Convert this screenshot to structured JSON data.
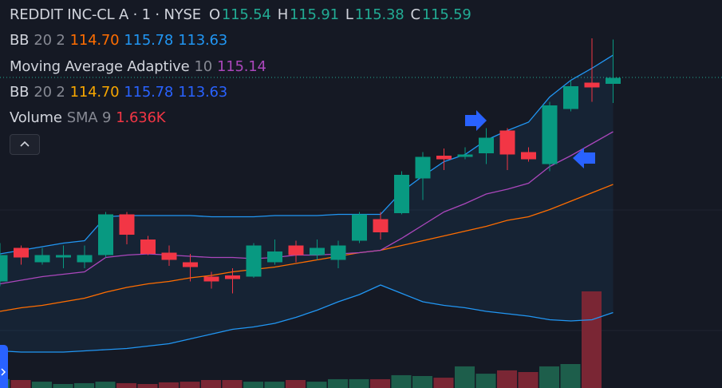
{
  "legend": {
    "symbol": "REDDIT INC-CL A · 1 · NYSE",
    "ohlc": [
      {
        "label": "O",
        "value": "115.54"
      },
      {
        "label": "H",
        "value": "115.91"
      },
      {
        "label": "L",
        "value": "115.38"
      },
      {
        "label": "C",
        "value": "115.59"
      }
    ],
    "bb1": {
      "name": "BB",
      "params": "20 2",
      "basis": "114.70",
      "upper": "115.78",
      "lower": "113.63"
    },
    "ama": {
      "name": "Moving Average Adaptive",
      "params": "10",
      "value": "115.14"
    },
    "bb2": {
      "name": "BB",
      "params": "20 2",
      "basis": "114.70",
      "upper": "115.78",
      "lower": "113.63"
    },
    "volume": {
      "name": "Volume",
      "params": "SMA 9",
      "value": "1.636K"
    }
  },
  "chart_data": {
    "type": "candlestick",
    "up_color": "#089981",
    "down_color": "#f23645",
    "ylim": [
      113.0,
      116.24
    ],
    "open": [
      113.89,
      114.17,
      114.05,
      114.09,
      114.05,
      114.11,
      114.45,
      114.24,
      114.13,
      114.05,
      113.93,
      113.94,
      113.93,
      114.05,
      114.19,
      114.11,
      114.07,
      114.23,
      114.41,
      114.46,
      114.75,
      114.94,
      114.93,
      114.96,
      115.15,
      114.97,
      114.87,
      115.33,
      115.55,
      115.54
    ],
    "high": [
      114.21,
      114.19,
      114.17,
      114.19,
      114.19,
      114.47,
      114.47,
      114.27,
      114.19,
      114.12,
      113.97,
      114.0,
      114.21,
      114.24,
      114.23,
      114.24,
      114.23,
      114.47,
      114.47,
      114.81,
      114.97,
      115.0,
      115.01,
      115.17,
      115.17,
      115.01,
      115.39,
      115.57,
      115.92,
      115.91
    ],
    "low": [
      113.85,
      114.03,
      114.03,
      114.0,
      114.0,
      114.09,
      114.2,
      114.11,
      114.02,
      113.89,
      113.83,
      113.79,
      113.92,
      114.03,
      114.05,
      114.07,
      114.0,
      114.21,
      114.24,
      114.45,
      114.57,
      114.82,
      114.91,
      114.87,
      114.82,
      114.89,
      114.81,
      115.31,
      115.39,
      115.38
    ],
    "close": [
      114.11,
      114.09,
      114.11,
      114.11,
      114.11,
      114.45,
      114.28,
      114.12,
      114.07,
      114.01,
      113.89,
      113.91,
      114.19,
      114.14,
      114.11,
      114.17,
      114.19,
      114.45,
      114.3,
      114.78,
      114.93,
      114.91,
      114.95,
      115.09,
      114.95,
      114.91,
      115.36,
      115.52,
      115.51,
      115.59
    ],
    "bb_upper": {
      "color": "#2196f3",
      "values": [
        114.12,
        114.15,
        114.18,
        114.21,
        114.23,
        114.43,
        114.44,
        114.44,
        114.44,
        114.44,
        114.43,
        114.43,
        114.43,
        114.44,
        114.44,
        114.44,
        114.45,
        114.45,
        114.45,
        114.64,
        114.77,
        114.89,
        114.95,
        115.07,
        115.15,
        115.22,
        115.43,
        115.57,
        115.67,
        115.78
      ]
    },
    "bb_basis": {
      "color": "#ff6d00",
      "values": [
        113.64,
        113.67,
        113.69,
        113.72,
        113.75,
        113.8,
        113.84,
        113.87,
        113.89,
        113.92,
        113.94,
        113.97,
        113.99,
        114.01,
        114.04,
        114.07,
        114.1,
        114.13,
        114.15,
        114.19,
        114.23,
        114.27,
        114.31,
        114.35,
        114.4,
        114.43,
        114.49,
        114.56,
        114.63,
        114.7
      ]
    },
    "bb_lower": {
      "color": "#2196f3",
      "values": [
        113.31,
        113.3,
        113.3,
        113.3,
        113.31,
        113.32,
        113.33,
        113.35,
        113.37,
        113.41,
        113.45,
        113.49,
        113.51,
        113.54,
        113.59,
        113.65,
        113.72,
        113.78,
        113.86,
        113.79,
        113.72,
        113.69,
        113.67,
        113.64,
        113.62,
        113.6,
        113.57,
        113.56,
        113.57,
        113.63
      ]
    },
    "ama": {
      "color": "#ab47bc",
      "values": [
        113.87,
        113.9,
        113.93,
        113.95,
        113.97,
        114.09,
        114.11,
        114.12,
        114.11,
        114.1,
        114.09,
        114.09,
        114.08,
        114.09,
        114.11,
        114.11,
        114.12,
        114.13,
        114.15,
        114.25,
        114.36,
        114.47,
        114.54,
        114.62,
        114.66,
        114.71,
        114.85,
        114.94,
        115.04,
        115.14
      ]
    },
    "volume": {
      "up_color": "#1d5e4b",
      "down_color": "#7a2634",
      "ylim": [
        0,
        6
      ],
      "values": [
        0.53,
        0.48,
        0.38,
        0.24,
        0.29,
        0.38,
        0.29,
        0.24,
        0.34,
        0.38,
        0.48,
        0.48,
        0.38,
        0.38,
        0.48,
        0.38,
        0.53,
        0.53,
        0.53,
        0.77,
        0.72,
        0.62,
        1.3,
        0.86,
        1.06,
        0.96,
        1.3,
        1.44,
        5.81,
        null
      ]
    }
  }
}
